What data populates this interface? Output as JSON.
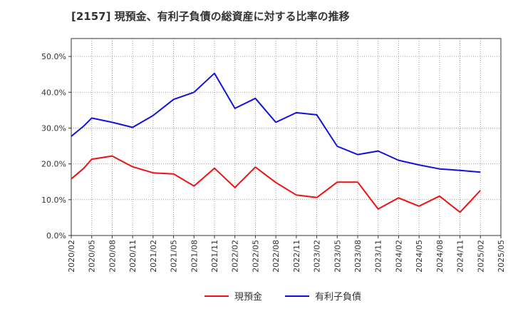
{
  "chart_data": {
    "type": "line",
    "title": "[2157]  現預金、有利子負債の総資産に対する比率の推移",
    "xlabel": "",
    "ylabel": "",
    "ylim": [
      0,
      0.55
    ],
    "yticks": [
      0,
      0.1,
      0.2,
      0.3,
      0.4,
      0.5
    ],
    "ytick_labels": [
      "0.0%",
      "10.0%",
      "20.0%",
      "30.0%",
      "40.0%",
      "50.0%"
    ],
    "x_tick_labels": [
      "2020/02",
      "2020/05",
      "2020/08",
      "2020/11",
      "2021/02",
      "2021/05",
      "2021/08",
      "2021/11",
      "2022/02",
      "2022/05",
      "2022/08",
      "2022/11",
      "2023/02",
      "2023/05",
      "2023/08",
      "2023/11",
      "2024/02",
      "2024/05",
      "2024/08",
      "2024/11",
      "2025/02",
      "2025/05"
    ],
    "grid": true,
    "legend_position": "bottom",
    "series": [
      {
        "name": "現預金",
        "color": "#ee1111",
        "points": [
          [
            0,
            0.158
          ],
          [
            0.6,
            0.187
          ],
          [
            1,
            0.213
          ],
          [
            2,
            0.222
          ],
          [
            3,
            0.192
          ],
          [
            4,
            0.175
          ],
          [
            5,
            0.172
          ],
          [
            6,
            0.138
          ],
          [
            7,
            0.188
          ],
          [
            8,
            0.134
          ],
          [
            9,
            0.191
          ],
          [
            10,
            0.148
          ],
          [
            11,
            0.113
          ],
          [
            12,
            0.106
          ],
          [
            13,
            0.149
          ],
          [
            14,
            0.149
          ],
          [
            15,
            0.074
          ],
          [
            16,
            0.105
          ],
          [
            17,
            0.082
          ],
          [
            18,
            0.11
          ],
          [
            19,
            0.065
          ],
          [
            20,
            0.126
          ]
        ]
      },
      {
        "name": "有利子負債",
        "color": "#1111dd",
        "points": [
          [
            0,
            0.277
          ],
          [
            0.6,
            0.305
          ],
          [
            1,
            0.328
          ],
          [
            2,
            0.316
          ],
          [
            3,
            0.302
          ],
          [
            4,
            0.335
          ],
          [
            5,
            0.38
          ],
          [
            6,
            0.4
          ],
          [
            7,
            0.453
          ],
          [
            8,
            0.355
          ],
          [
            9,
            0.383
          ],
          [
            10,
            0.316
          ],
          [
            11,
            0.343
          ],
          [
            12,
            0.337
          ],
          [
            13,
            0.249
          ],
          [
            14,
            0.226
          ],
          [
            15,
            0.236
          ],
          [
            16,
            0.21
          ],
          [
            17,
            0.197
          ],
          [
            18,
            0.186
          ],
          [
            19,
            0.182
          ],
          [
            20,
            0.177
          ]
        ]
      }
    ]
  }
}
